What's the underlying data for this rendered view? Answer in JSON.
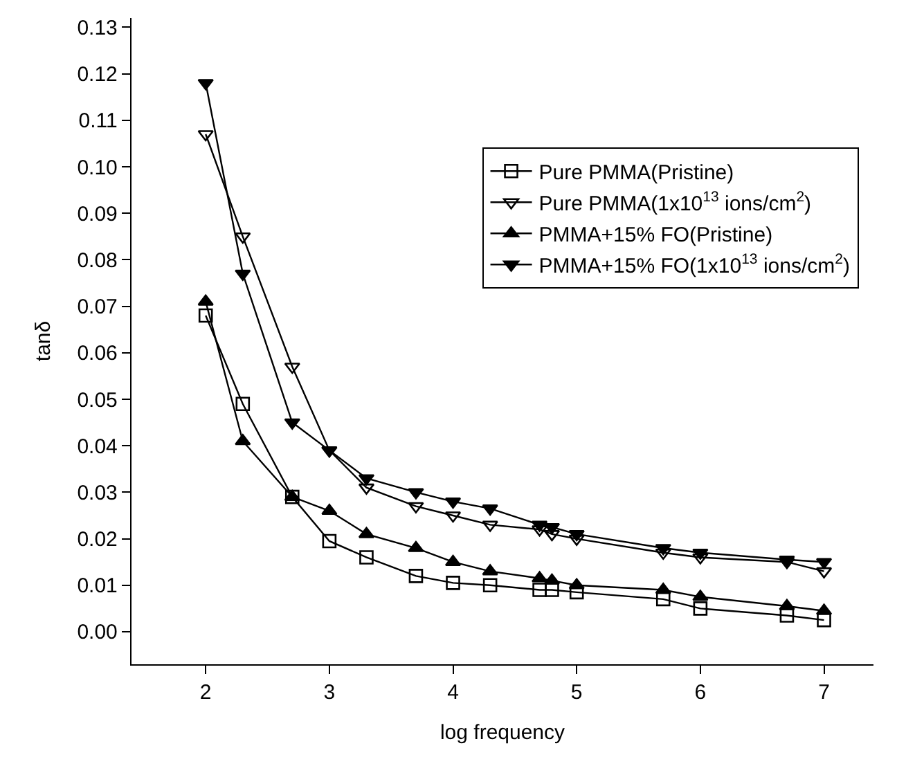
{
  "chart_data": {
    "type": "line",
    "xlabel": "log frequency",
    "ylabel": "tanδ",
    "x": [
      2,
      2.3,
      2.7,
      3,
      3.3,
      3.7,
      4,
      4.3,
      4.7,
      4.8,
      5,
      5.7,
      6,
      6.7,
      7
    ],
    "series": [
      {
        "name": "Pure PMMA(Pristine)",
        "color": "#000000",
        "marker": "square-open",
        "values": [
          0.068,
          0.049,
          0.029,
          0.0195,
          0.016,
          0.012,
          0.0105,
          0.01,
          0.009,
          0.009,
          0.0085,
          0.007,
          0.005,
          0.0035,
          0.0025
        ]
      },
      {
        "name": "Pure PMMA(1x10$^{13}$ ions/cm$^{2}$)",
        "color": "#000000",
        "marker": "triangle-down-open",
        "values": [
          0.107,
          0.085,
          0.057,
          0.039,
          0.031,
          0.027,
          0.025,
          0.023,
          0.022,
          0.021,
          0.02,
          0.017,
          0.016,
          0.015,
          0.013
        ]
      },
      {
        "name": "PMMA+15% FO(Pristine)",
        "color": "#000000",
        "marker": "triangle-up",
        "values": [
          0.071,
          0.041,
          0.029,
          0.026,
          0.021,
          0.018,
          0.015,
          0.013,
          0.0115,
          0.011,
          0.01,
          0.009,
          0.0075,
          0.0055,
          0.0045
        ]
      },
      {
        "name": "PMMA+15% FO(1x10$^{13}$ ions/cm$^{2}$)",
        "color": "#000000",
        "marker": "triangle-down",
        "values": [
          0.118,
          0.077,
          0.045,
          0.039,
          0.033,
          0.03,
          0.028,
          0.0265,
          0.023,
          0.0225,
          0.021,
          0.018,
          0.017,
          0.0155,
          0.015
        ]
      }
    ],
    "xlim": [
      1.4,
      7.4
    ],
    "xticks": [
      2,
      3,
      4,
      5,
      6,
      7
    ],
    "ylim": [
      -0.007,
      0.132
    ],
    "yticks": [
      {
        "value": 0,
        "label": "0.00"
      },
      {
        "value": 0.01,
        "label": "0.01"
      },
      {
        "value": 0.02,
        "label": "0.02"
      },
      {
        "value": 0.03,
        "label": "0.03"
      },
      {
        "value": 0.04,
        "label": "0.04"
      },
      {
        "value": 0.05,
        "label": "0.05"
      },
      {
        "value": 0.06,
        "label": "0.06"
      },
      {
        "value": 0.07,
        "label": "0.07"
      },
      {
        "value": 0.08,
        "label": "0.08"
      },
      {
        "value": 0.09,
        "label": "0.09"
      },
      {
        "value": 0.1,
        "label": "0.10"
      },
      {
        "value": 0.11,
        "label": "0.11"
      },
      {
        "value": 0.12,
        "label": "0.12"
      },
      {
        "value": 0.13,
        "label": "0.13"
      }
    ],
    "legend": "top right",
    "line_style": "solid"
  }
}
